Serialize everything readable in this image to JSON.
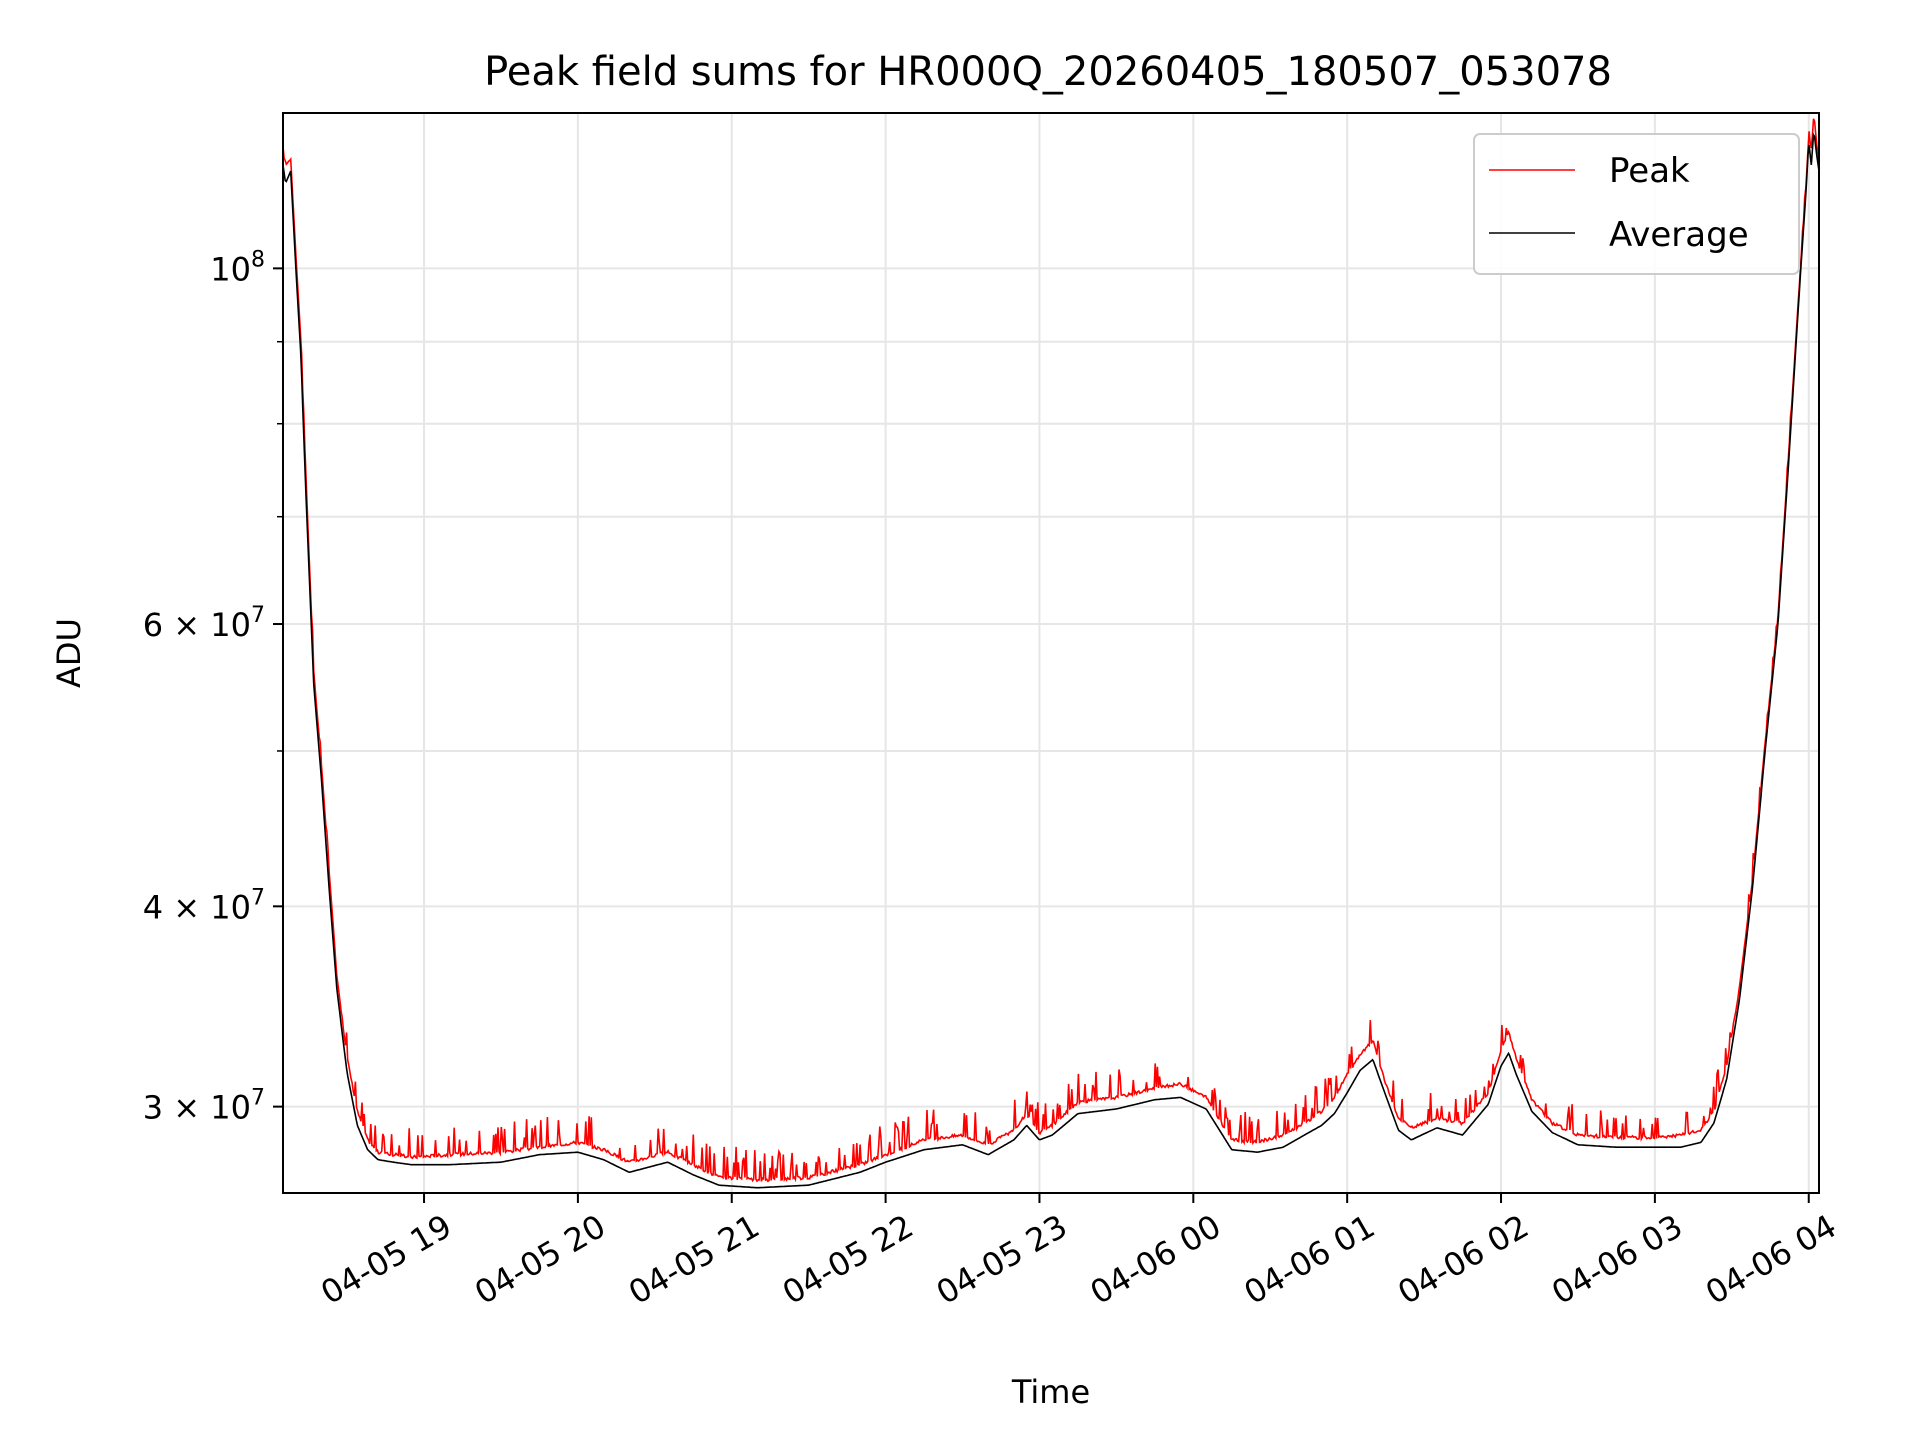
{
  "chart_data": {
    "type": "line",
    "title": "Peak field sums for HR000Q_20260405_180507_053078",
    "xlabel": "Time",
    "ylabel": "ADU",
    "x_is_time": true,
    "xlim": [
      "2026-04-05T18:05",
      "2026-04-06T04:04"
    ],
    "ylim": [
      26500000,
      125000000
    ],
    "y_scale": "log",
    "x_ticks": [
      {
        "value": "2026-04-05T19:00",
        "label": "04-05 19"
      },
      {
        "value": "2026-04-05T20:00",
        "label": "04-05 20"
      },
      {
        "value": "2026-04-05T21:00",
        "label": "04-05 21"
      },
      {
        "value": "2026-04-05T22:00",
        "label": "04-05 22"
      },
      {
        "value": "2026-04-05T23:00",
        "label": "04-05 23"
      },
      {
        "value": "2026-04-06T00:00",
        "label": "04-06 00"
      },
      {
        "value": "2026-04-06T01:00",
        "label": "04-06 01"
      },
      {
        "value": "2026-04-06T02:00",
        "label": "04-06 02"
      },
      {
        "value": "2026-04-06T03:00",
        "label": "04-06 03"
      },
      {
        "value": "2026-04-06T04:00",
        "label": "04-06 04"
      }
    ],
    "y_major_ticks": [
      {
        "value": 30000000,
        "mantissa": "3",
        "label": "3 × 10⁷"
      },
      {
        "value": 40000000,
        "mantissa": "4",
        "label": "4 × 10⁷"
      },
      {
        "value": 60000000,
        "mantissa": "6",
        "label": "6 × 10⁷"
      },
      {
        "value": 100000000,
        "mantissa": "",
        "label": "10⁸"
      }
    ],
    "y_minor_ticks": [
      50000000,
      70000000,
      80000000,
      90000000
    ],
    "grid": true,
    "legend": {
      "position": "top-right",
      "entries": [
        "Peak",
        "Average"
      ]
    },
    "colors": {
      "Peak": "#ff0000",
      "Average": "#000000"
    },
    "series": [
      {
        "name": "Average",
        "x": [
          "2026-04-05T18:05",
          "2026-04-05T18:06",
          "2026-04-05T18:08",
          "2026-04-05T18:10",
          "2026-04-05T18:12",
          "2026-04-05T18:14",
          "2026-04-05T18:17",
          "2026-04-05T18:20",
          "2026-04-05T18:23",
          "2026-04-05T18:26",
          "2026-04-05T18:30",
          "2026-04-05T18:34",
          "2026-04-05T18:38",
          "2026-04-05T18:42",
          "2026-04-05T18:48",
          "2026-04-05T18:55",
          "2026-04-05T19:10",
          "2026-04-05T19:30",
          "2026-04-05T19:45",
          "2026-04-05T20:00",
          "2026-04-05T20:10",
          "2026-04-05T20:20",
          "2026-04-05T20:35",
          "2026-04-05T20:45",
          "2026-04-05T20:55",
          "2026-04-05T21:10",
          "2026-04-05T21:30",
          "2026-04-05T21:50",
          "2026-04-05T22:00",
          "2026-04-05T22:15",
          "2026-04-05T22:30",
          "2026-04-05T22:40",
          "2026-04-05T22:50",
          "2026-04-05T22:55",
          "2026-04-05T23:00",
          "2026-04-05T23:05",
          "2026-04-05T23:15",
          "2026-04-05T23:30",
          "2026-04-05T23:45",
          "2026-04-05T23:55",
          "2026-04-06T00:05",
          "2026-04-06T00:15",
          "2026-04-06T00:25",
          "2026-04-06T00:35",
          "2026-04-06T00:45",
          "2026-04-06T00:50",
          "2026-04-06T00:55",
          "2026-04-06T01:00",
          "2026-04-06T01:05",
          "2026-04-06T01:10",
          "2026-04-06T01:15",
          "2026-04-06T01:20",
          "2026-04-06T01:25",
          "2026-04-06T01:35",
          "2026-04-06T01:45",
          "2026-04-06T01:55",
          "2026-04-06T02:00",
          "2026-04-06T02:03",
          "2026-04-06T02:06",
          "2026-04-06T02:12",
          "2026-04-06T02:20",
          "2026-04-06T02:30",
          "2026-04-06T02:45",
          "2026-04-06T03:00",
          "2026-04-06T03:10",
          "2026-04-06T03:18",
          "2026-04-06T03:23",
          "2026-04-06T03:28",
          "2026-04-06T03:33",
          "2026-04-06T03:38",
          "2026-04-06T03:43",
          "2026-04-06T03:48",
          "2026-04-06T03:52",
          "2026-04-06T03:56",
          "2026-04-06T03:59",
          "2026-04-06T04:00",
          "2026-04-06T04:01",
          "2026-04-06T04:02",
          "2026-04-06T04:03",
          "2026-04-06T04:04"
        ],
        "y": [
          116000000,
          113000000,
          115000000,
          100000000,
          88000000,
          72000000,
          55000000,
          48000000,
          41000000,
          35500000,
          31500000,
          29200000,
          28200000,
          27800000,
          27700000,
          27600000,
          27600000,
          27700000,
          28000000,
          28100000,
          27800000,
          27300000,
          27700000,
          27200000,
          26800000,
          26700000,
          26800000,
          27300000,
          27700000,
          28200000,
          28400000,
          28000000,
          28600000,
          29200000,
          28600000,
          28800000,
          29700000,
          29900000,
          30300000,
          30400000,
          29900000,
          28200000,
          28100000,
          28300000,
          28900000,
          29200000,
          29700000,
          30600000,
          31600000,
          32100000,
          30500000,
          29000000,
          28600000,
          29100000,
          28800000,
          30100000,
          31800000,
          32400000,
          31400000,
          29800000,
          28900000,
          28400000,
          28300000,
          28300000,
          28300000,
          28500000,
          29300000,
          31200000,
          35000000,
          41000000,
          50000000,
          60000000,
          75000000,
          95000000,
          112000000,
          120000000,
          116000000,
          122000000,
          118000000,
          115000000
        ]
      },
      {
        "name": "Peak",
        "x": [
          "2026-04-05T18:05",
          "2026-04-05T18:06",
          "2026-04-05T18:08",
          "2026-04-05T18:10",
          "2026-04-05T18:12",
          "2026-04-05T18:14",
          "2026-04-05T18:17",
          "2026-04-05T18:20",
          "2026-04-05T18:23",
          "2026-04-05T18:26",
          "2026-04-05T18:30",
          "2026-04-05T18:34",
          "2026-04-05T18:38",
          "2026-04-05T18:42",
          "2026-04-05T18:48",
          "2026-04-05T18:55",
          "2026-04-05T19:10",
          "2026-04-05T19:30",
          "2026-04-05T19:45",
          "2026-04-05T20:00",
          "2026-04-05T20:10",
          "2026-04-05T20:20",
          "2026-04-05T20:35",
          "2026-04-05T20:45",
          "2026-04-05T20:55",
          "2026-04-05T21:10",
          "2026-04-05T21:30",
          "2026-04-05T21:50",
          "2026-04-05T22:00",
          "2026-04-05T22:15",
          "2026-04-05T22:30",
          "2026-04-05T22:40",
          "2026-04-05T22:50",
          "2026-04-05T22:55",
          "2026-04-05T23:00",
          "2026-04-05T23:05",
          "2026-04-05T23:15",
          "2026-04-05T23:30",
          "2026-04-05T23:45",
          "2026-04-05T23:55",
          "2026-04-06T00:05",
          "2026-04-06T00:15",
          "2026-04-06T00:25",
          "2026-04-06T00:35",
          "2026-04-06T00:45",
          "2026-04-06T00:50",
          "2026-04-06T00:55",
          "2026-04-06T01:00",
          "2026-04-06T01:05",
          "2026-04-06T01:10",
          "2026-04-06T01:15",
          "2026-04-06T01:20",
          "2026-04-06T01:25",
          "2026-04-06T01:35",
          "2026-04-06T01:45",
          "2026-04-06T01:55",
          "2026-04-06T02:00",
          "2026-04-06T02:03",
          "2026-04-06T02:06",
          "2026-04-06T02:12",
          "2026-04-06T02:20",
          "2026-04-06T02:30",
          "2026-04-06T02:45",
          "2026-04-06T03:00",
          "2026-04-06T03:10",
          "2026-04-06T03:18",
          "2026-04-06T03:23",
          "2026-04-06T03:28",
          "2026-04-06T03:33",
          "2026-04-06T03:38",
          "2026-04-06T03:43",
          "2026-04-06T03:48",
          "2026-04-06T03:52",
          "2026-04-06T03:56",
          "2026-04-06T03:59",
          "2026-04-06T04:00",
          "2026-04-06T04:01",
          "2026-04-06T04:02",
          "2026-04-06T04:03",
          "2026-04-06T04:04"
        ],
        "y": [
          118000000,
          116000000,
          117000000,
          102000000,
          90000000,
          74000000,
          56000000,
          49000000,
          42000000,
          36200000,
          32200000,
          29800000,
          28600000,
          28100000,
          28000000,
          27900000,
          28000000,
          28100000,
          28300000,
          28500000,
          28200000,
          27700000,
          28100000,
          27600000,
          27100000,
          27000000,
          27100000,
          27600000,
          28000000,
          28600000,
          28800000,
          28400000,
          29000000,
          29700000,
          28900000,
          29200000,
          30200000,
          30400000,
          30800000,
          31000000,
          30400000,
          28600000,
          28500000,
          28800000,
          29400000,
          29800000,
          30400000,
          31400000,
          32300000,
          33000000,
          31000000,
          29500000,
          29100000,
          29500000,
          29300000,
          30600000,
          32500000,
          33400000,
          32100000,
          30300000,
          29300000,
          28800000,
          28700000,
          28700000,
          28800000,
          29000000,
          29800000,
          31800000,
          35600000,
          41500000,
          50600000,
          60600000,
          76000000,
          96000000,
          113000000,
          121000000,
          118000000,
          125000000,
          120000000,
          116000000
        ]
      }
    ],
    "peak_spike_amplitude": 900000
  }
}
